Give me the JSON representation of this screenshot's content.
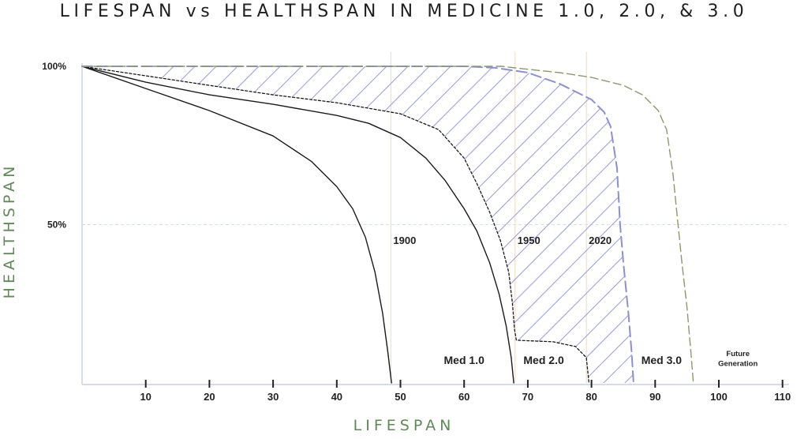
{
  "title": "LIFESPAN vs HEALTHSPAN IN MEDICINE 1.0, 2.0, & 3.0",
  "colors": {
    "axis_label": "#5e8a55",
    "axis": "#c7cfe6",
    "grid": "#d7e0e8",
    "year_line": "#f3dfc4",
    "black_curve": "#1a1a1a",
    "med3_curve": "#8a8fd8",
    "future_curve": "#8a9a6a",
    "hatch": "#9ea3dd"
  },
  "chart_data": {
    "type": "line",
    "title": "LIFESPAN vs HEALTHSPAN IN MEDICINE 1.0, 2.0, & 3.0",
    "xlabel": "LIFESPAN",
    "ylabel": "HEALTHSPAN",
    "xlim": [
      0,
      112
    ],
    "ylim": [
      0,
      100
    ],
    "x_ticks": [
      10,
      20,
      30,
      40,
      50,
      60,
      70,
      80,
      90,
      100,
      110
    ],
    "y_ticks": [
      {
        "value": 50,
        "label": "50%"
      },
      {
        "value": 100,
        "label": "100%"
      }
    ],
    "reference_lines": [
      {
        "x": 48.5,
        "label": "1900"
      },
      {
        "x": 68,
        "label": "1950"
      },
      {
        "x": 79.2,
        "label": "2020"
      }
    ],
    "series": [
      {
        "key": "s1900",
        "style": "solid",
        "points": [
          [
            0,
            100
          ],
          [
            10,
            93
          ],
          [
            20,
            86
          ],
          [
            30,
            78
          ],
          [
            36,
            70
          ],
          [
            40,
            62
          ],
          [
            42.5,
            55
          ],
          [
            44.5,
            46
          ],
          [
            46,
            35
          ],
          [
            47.2,
            22
          ],
          [
            48,
            10
          ],
          [
            48.6,
            0
          ]
        ]
      },
      {
        "key": "s1950",
        "style": "solid",
        "points": [
          [
            0,
            100
          ],
          [
            10,
            95
          ],
          [
            20,
            91
          ],
          [
            30,
            88
          ],
          [
            40,
            84.5
          ],
          [
            45,
            82
          ],
          [
            50,
            77.5
          ],
          [
            54,
            71
          ],
          [
            57,
            64
          ],
          [
            60,
            55
          ],
          [
            62,
            48
          ],
          [
            64,
            38
          ],
          [
            65.5,
            28
          ],
          [
            66.6,
            18
          ],
          [
            67.4,
            8
          ],
          [
            67.8,
            0
          ]
        ]
      },
      {
        "key": "s2020",
        "style": "dotted",
        "points": [
          [
            0,
            100
          ],
          [
            10,
            97
          ],
          [
            20,
            94
          ],
          [
            30,
            91
          ],
          [
            40,
            88.5
          ],
          [
            50,
            85
          ],
          [
            56,
            80
          ],
          [
            60,
            71
          ],
          [
            62,
            63
          ],
          [
            64,
            54
          ],
          [
            65.7,
            45
          ],
          [
            67,
            35
          ],
          [
            67.6,
            25
          ],
          [
            67.9,
            17
          ],
          [
            68.2,
            13.5
          ],
          [
            74,
            13
          ],
          [
            77.5,
            11.5
          ],
          [
            79.2,
            8
          ],
          [
            79.6,
            0
          ]
        ]
      },
      {
        "key": "med3",
        "style": "dashed",
        "points": [
          [
            0,
            100
          ],
          [
            20,
            100
          ],
          [
            40,
            100
          ],
          [
            60,
            100
          ],
          [
            65,
            99.5
          ],
          [
            70,
            98
          ],
          [
            75,
            94.5
          ],
          [
            80,
            89.5
          ],
          [
            82,
            85.5
          ],
          [
            83,
            81
          ],
          [
            84,
            68
          ],
          [
            84.5,
            50
          ],
          [
            85,
            38
          ],
          [
            85.8,
            22
          ],
          [
            86.3,
            10
          ],
          [
            86.6,
            0
          ]
        ]
      },
      {
        "key": "future",
        "style": "dashed",
        "points": [
          [
            0,
            100
          ],
          [
            40,
            100
          ],
          [
            66,
            100
          ],
          [
            68,
            99.5
          ],
          [
            75,
            98
          ],
          [
            80,
            96.5
          ],
          [
            85,
            94
          ],
          [
            88,
            91
          ],
          [
            90.5,
            86
          ],
          [
            91.8,
            80
          ],
          [
            92.8,
            66
          ],
          [
            93.5,
            52
          ],
          [
            94.2,
            38
          ],
          [
            95,
            24
          ],
          [
            95.6,
            10
          ],
          [
            96,
            0
          ]
        ]
      }
    ],
    "annotations": [
      {
        "text": "Med 1.0",
        "x": 60,
        "y": 6
      },
      {
        "text": "Med 2.0",
        "x": 72.5,
        "y": 6
      },
      {
        "text": "Med 3.0",
        "x": 91,
        "y": 6
      },
      {
        "text": "Future",
        "x": 103,
        "y": 8.5
      },
      {
        "text": "Generation",
        "x": 103,
        "y": 5.3
      }
    ],
    "grid": true
  }
}
